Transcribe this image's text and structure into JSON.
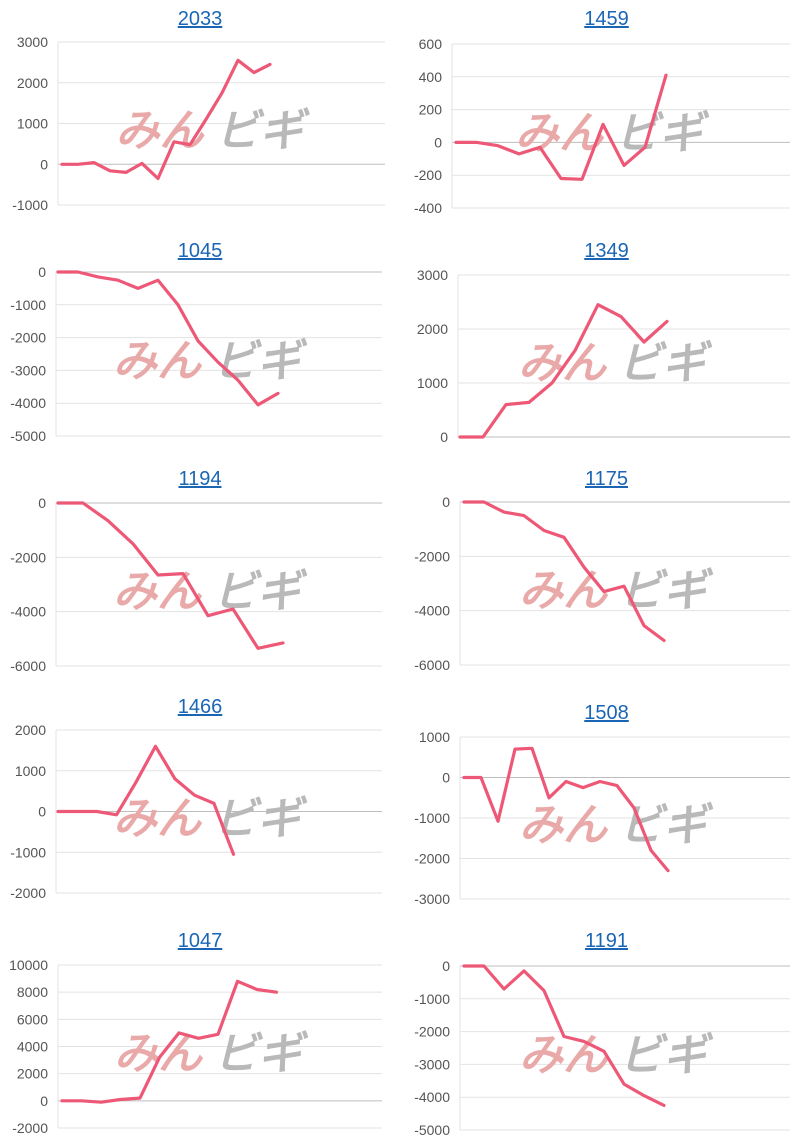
{
  "style": {
    "line_color": "#ee5877",
    "grid_color": "#e3e3e3",
    "axis_color": "#bdbdbd",
    "title_color": "#1a66b4"
  },
  "watermark": {
    "text_left": "みん",
    "text_right": "ビギ",
    "color_left": "#e9a9a9",
    "color_right": "#b9b9b9"
  },
  "chart_data": [
    {
      "type": "line",
      "title": "2033",
      "ylim": [
        -1000,
        3000
      ],
      "yticks": [
        3000,
        2000,
        1000,
        0,
        -1000
      ],
      "values": [
        0,
        0,
        40,
        -160,
        -200,
        20,
        -350,
        550,
        480,
        1100,
        1750,
        2550,
        2250,
        2450
      ]
    },
    {
      "type": "line",
      "title": "1459",
      "ylim": [
        -400,
        600
      ],
      "yticks": [
        600,
        400,
        200,
        0,
        -200,
        -400
      ],
      "values": [
        0,
        0,
        -20,
        -70,
        -30,
        -220,
        -225,
        110,
        -140,
        -30,
        410
      ]
    },
    {
      "type": "line",
      "title": "1045",
      "ylim": [
        -5000,
        0
      ],
      "yticks": [
        0,
        -1000,
        -2000,
        -3000,
        -4000,
        -5000
      ],
      "values": [
        0,
        0,
        -150,
        -250,
        -500,
        -250,
        -1000,
        -2100,
        -2750,
        -3300,
        -4050,
        -3700
      ]
    },
    {
      "type": "line",
      "title": "1349",
      "ylim": [
        0,
        3000
      ],
      "yticks": [
        3000,
        2000,
        1000,
        0
      ],
      "values": [
        0,
        0,
        600,
        640,
        1000,
        1600,
        2450,
        2230,
        1760,
        2140
      ]
    },
    {
      "type": "line",
      "title": "1194",
      "ylim": [
        -6000,
        0
      ],
      "yticks": [
        0,
        -2000,
        -4000,
        -6000
      ],
      "values": [
        0,
        0,
        -650,
        -1500,
        -2650,
        -2600,
        -4150,
        -3900,
        -5350,
        -5150
      ]
    },
    {
      "type": "line",
      "title": "1175",
      "ylim": [
        -6000,
        0
      ],
      "yticks": [
        0,
        -2000,
        -4000,
        -6000
      ],
      "values": [
        0,
        0,
        -370,
        -500,
        -1050,
        -1300,
        -2400,
        -3300,
        -3100,
        -4550,
        -5100
      ]
    },
    {
      "type": "line",
      "title": "1466",
      "ylim": [
        -2000,
        2000
      ],
      "yticks": [
        2000,
        1000,
        0,
        -1000,
        -2000
      ],
      "values": [
        0,
        0,
        0,
        -80,
        720,
        1600,
        800,
        400,
        200,
        -1050
      ]
    },
    {
      "type": "line",
      "title": "1508",
      "ylim": [
        -3000,
        1000
      ],
      "yticks": [
        1000,
        0,
        -1000,
        -2000,
        -3000
      ],
      "values": [
        0,
        0,
        -1080,
        700,
        720,
        -500,
        -100,
        -250,
        -100,
        -200,
        -750,
        -1800,
        -2300
      ]
    },
    {
      "type": "line",
      "title": "1047",
      "ylim": [
        -2000,
        10000
      ],
      "yticks": [
        10000,
        8000,
        6000,
        4000,
        2000,
        0,
        -2000
      ],
      "values": [
        0,
        0,
        -100,
        100,
        200,
        3200,
        5000,
        4600,
        4900,
        8800,
        8200,
        8000
      ]
    },
    {
      "type": "line",
      "title": "1191",
      "ylim": [
        -5000,
        0
      ],
      "yticks": [
        0,
        -1000,
        -2000,
        -3000,
        -4000,
        -5000
      ],
      "values": [
        0,
        0,
        -700,
        -150,
        -750,
        -2150,
        -2300,
        -2600,
        -3600,
        -3950,
        -4250
      ]
    }
  ]
}
